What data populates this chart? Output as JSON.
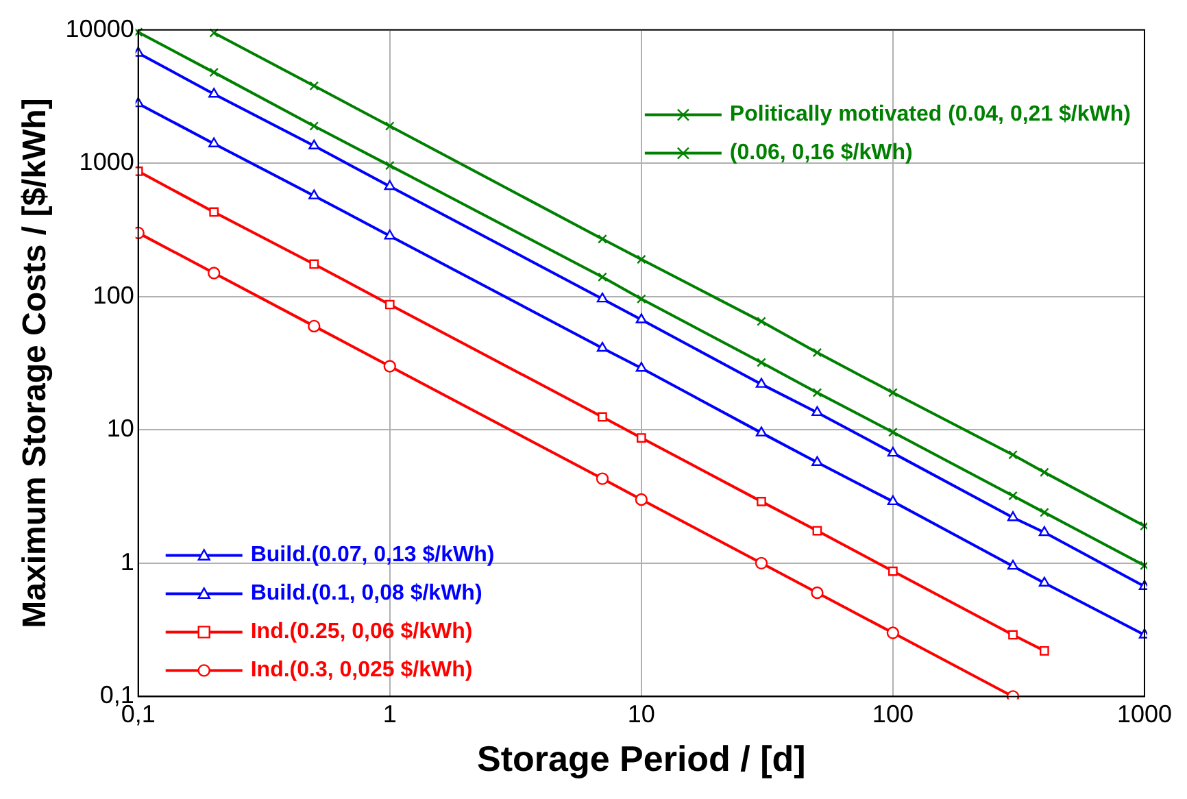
{
  "chart_data": {
    "type": "line",
    "xlabel": "Storage Period / [d]",
    "ylabel": "Maximum Storage Costs / [$/kWh]",
    "x": [
      0.1,
      0.2,
      0.5,
      1,
      7,
      10,
      30,
      50,
      100,
      300,
      400,
      1000
    ],
    "series": [
      {
        "name": "Politically motivated (0.04, 0,21 $/kWh)",
        "color": "#008000",
        "marker": "cross",
        "values": [
          null,
          9500,
          3800,
          1900,
          270,
          190,
          65,
          38,
          19,
          6.5,
          4.8,
          1.9
        ]
      },
      {
        "name": "(0.06, 0,16 $/kWh)",
        "color": "#008000",
        "marker": "cross",
        "values": [
          9600,
          4800,
          1900,
          960,
          140,
          96,
          32,
          19,
          9.6,
          3.2,
          2.4,
          0.96
        ]
      },
      {
        "name": "Build.(0.07, 0,13 $/kWh)",
        "color": "#0000ff",
        "marker": "triangle",
        "values": [
          2800,
          1400,
          570,
          285,
          41,
          29,
          9.5,
          5.7,
          2.9,
          0.95,
          0.71,
          0.29
        ]
      },
      {
        "name": "Build.(0.1, 0,08 $/kWh)",
        "color": "#0000ff",
        "marker": "triangle",
        "values": [
          6700,
          3300,
          1350,
          670,
          96,
          67,
          22,
          13.5,
          6.7,
          2.2,
          1.7,
          0.67
        ]
      },
      {
        "name": "Ind.(0.25, 0,06 $/kWh)",
        "color": "#ff0000",
        "marker": "square",
        "values": [
          870,
          430,
          175,
          87,
          12.5,
          8.7,
          2.9,
          1.75,
          0.87,
          0.29,
          0.22,
          null
        ]
      },
      {
        "name": "Ind.(0.3, 0,025 $/kWh)",
        "color": "#ff0000",
        "marker": "circle",
        "values": [
          300,
          150,
          60,
          30,
          4.3,
          3,
          1,
          0.6,
          0.3,
          0.1,
          null,
          null
        ]
      }
    ],
    "log": "xy",
    "grid": true,
    "legend": "bottom left",
    "xlim": [
      0.1,
      1000
    ],
    "xticks": [
      {
        "value": 0.1,
        "label": "0,1"
      },
      1,
      10,
      100,
      1000
    ],
    "ylim": [
      0.1,
      10000
    ],
    "yticks": [
      {
        "value": 0.1,
        "label": "0,1"
      },
      1,
      10,
      100,
      1000,
      10000
    ]
  }
}
